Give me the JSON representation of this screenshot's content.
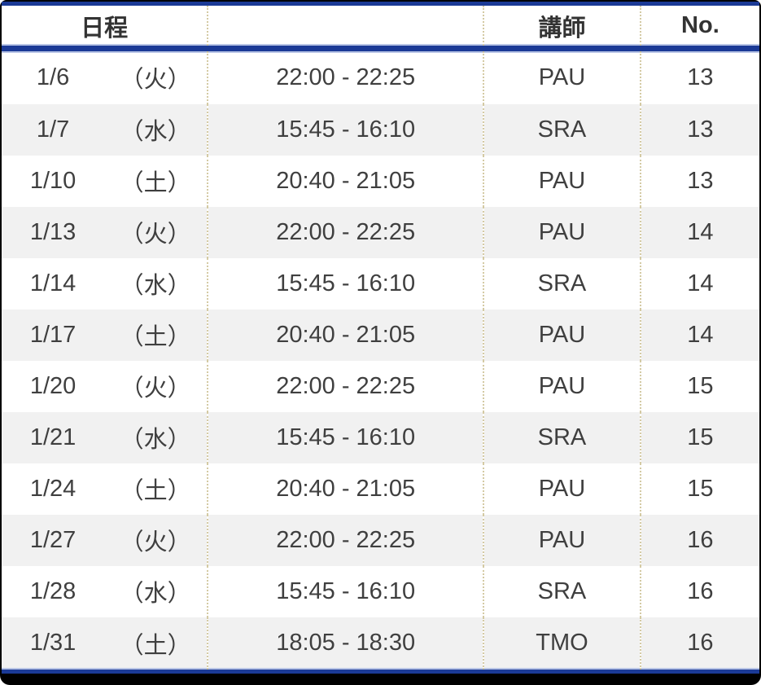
{
  "table": {
    "header": {
      "date": "日程",
      "time": "",
      "teacher": "講師",
      "no": "No."
    },
    "rows": [
      {
        "date": "1/6",
        "day": "（火）",
        "time": "22:00 - 22:25",
        "teacher": "PAU",
        "no": "13"
      },
      {
        "date": "1/7",
        "day": "（水）",
        "time": "15:45 - 16:10",
        "teacher": "SRA",
        "no": "13"
      },
      {
        "date": "1/10",
        "day": "（土）",
        "time": "20:40 - 21:05",
        "teacher": "PAU",
        "no": "13"
      },
      {
        "date": "1/13",
        "day": "（火）",
        "time": "22:00 - 22:25",
        "teacher": "PAU",
        "no": "14"
      },
      {
        "date": "1/14",
        "day": "（水）",
        "time": "15:45 - 16:10",
        "teacher": "SRA",
        "no": "14"
      },
      {
        "date": "1/17",
        "day": "（土）",
        "time": "20:40 - 21:05",
        "teacher": "PAU",
        "no": "14"
      },
      {
        "date": "1/20",
        "day": "（火）",
        "time": "22:00 - 22:25",
        "teacher": "PAU",
        "no": "15"
      },
      {
        "date": "1/21",
        "day": "（水）",
        "time": "15:45 - 16:10",
        "teacher": "SRA",
        "no": "15"
      },
      {
        "date": "1/24",
        "day": "（土）",
        "time": "20:40 - 21:05",
        "teacher": "PAU",
        "no": "15"
      },
      {
        "date": "1/27",
        "day": "（火）",
        "time": "22:00 - 22:25",
        "teacher": "PAU",
        "no": "16"
      },
      {
        "date": "1/28",
        "day": "（水）",
        "time": "15:45 - 16:10",
        "teacher": "SRA",
        "no": "16"
      },
      {
        "date": "1/31",
        "day": "（土）",
        "time": "18:05 - 18:30",
        "teacher": "TMO",
        "no": "16"
      }
    ]
  },
  "colors": {
    "accent_blue": "#1b3a96",
    "accent_light": "#b9c5e6",
    "row_alt": "#f1f1f1",
    "dotted": "#d4caa4",
    "text": "#3f3f3f",
    "frame": "#000000"
  }
}
